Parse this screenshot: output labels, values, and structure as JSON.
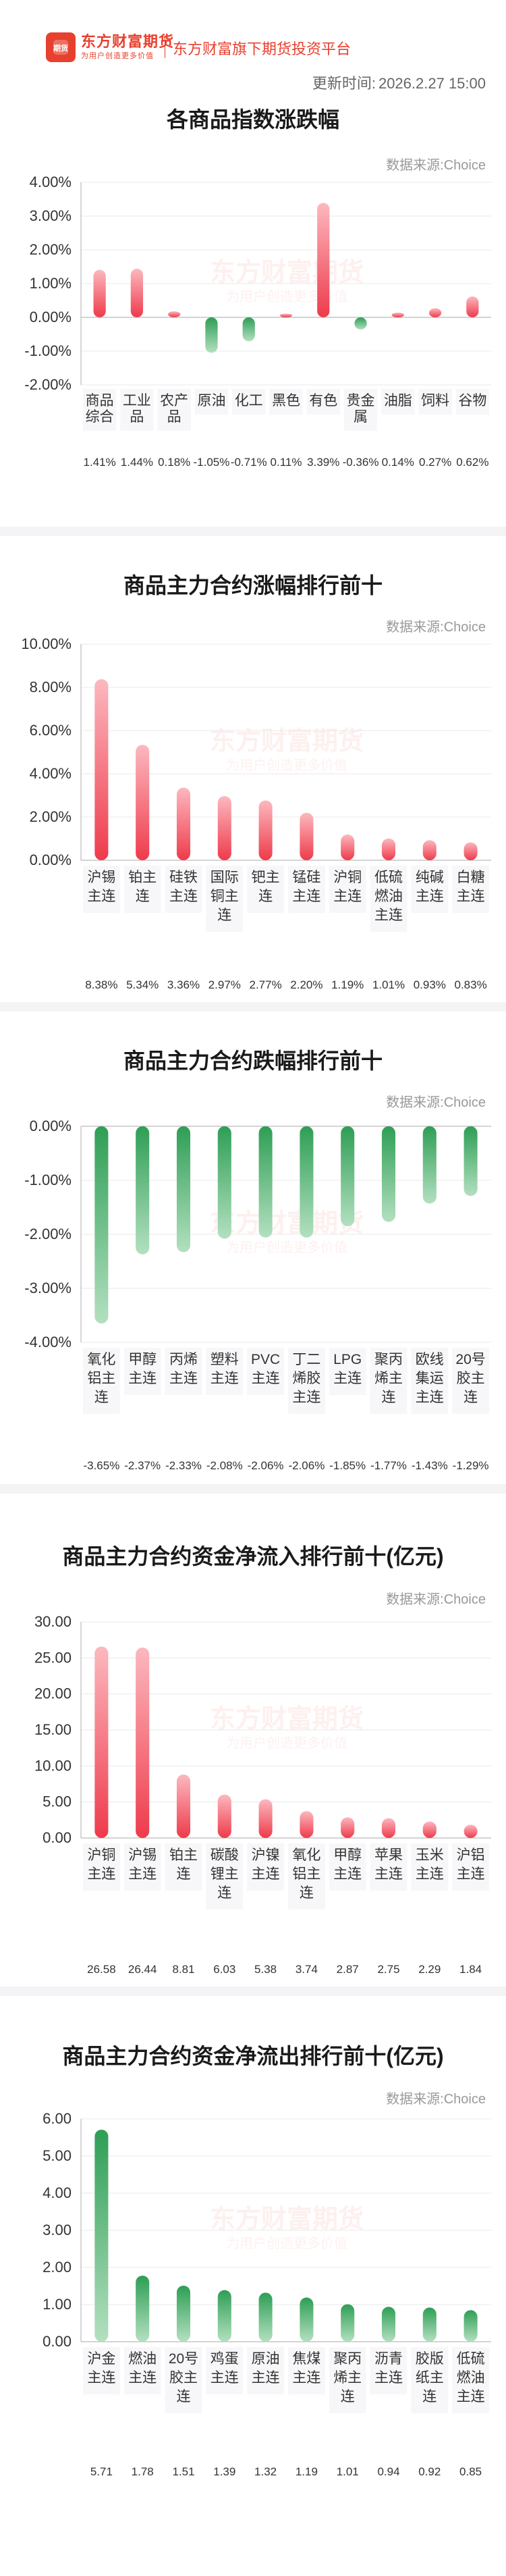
{
  "header": {
    "brand": "东方财富期货",
    "brand_slogan": "为用户创造更多价值",
    "logo_mark": "期货",
    "platform": "东方财富旗下期货投资平台",
    "update_label": "更新时间:",
    "update_time": "2026.2.27 15:00"
  },
  "watermark": {
    "brand": "东方财富期货",
    "slogan": "为用户创造更多价值"
  },
  "colors": {
    "up": "#ee3b4b",
    "up_light": "#fcb8bf",
    "down": "#2e9e55",
    "down_light": "#b3e0c0",
    "axis_text": "#333333",
    "grid": "#e9e9e9"
  },
  "chart_data": [
    {
      "id": "index",
      "type": "bar",
      "title": "各商品指数涨跌幅",
      "source": "数据来源:Choice",
      "categories": [
        [
          "商品",
          "综合"
        ],
        [
          "工业",
          "品"
        ],
        [
          "农产",
          "品"
        ],
        [
          "原油"
        ],
        [
          "化工"
        ],
        [
          "黑色"
        ],
        [
          "有色"
        ],
        [
          "贵金",
          "属"
        ],
        [
          "油脂"
        ],
        [
          "饲料"
        ],
        [
          "谷物"
        ]
      ],
      "values": [
        1.41,
        1.44,
        0.18,
        -1.05,
        -0.71,
        0.11,
        3.39,
        -0.36,
        0.14,
        0.27,
        0.62
      ],
      "value_labels": [
        "1.41%",
        "1.44%",
        "0.18%",
        "-1.05%",
        "-0.71%",
        "0.11%",
        "3.39%",
        "-0.36%",
        "0.14%",
        "0.27%",
        "0.62%"
      ],
      "ylim": [
        -2,
        4
      ],
      "yticks": [
        -2,
        -1,
        0,
        1,
        2,
        3,
        4
      ],
      "ytick_labels": [
        "-2.00%",
        "-1.00%",
        "0.00%",
        "1.00%",
        "2.00%",
        "3.00%",
        "4.00%"
      ],
      "grid": true
    },
    {
      "id": "gainers",
      "type": "bar",
      "title": "商品主力合约涨幅排行前十",
      "source": "数据来源:Choice",
      "categories": [
        [
          "沪锡",
          "主连"
        ],
        [
          "铂主",
          "连"
        ],
        [
          "硅铁",
          "主连"
        ],
        [
          "国际",
          "铜主",
          "连"
        ],
        [
          "钯主",
          "连"
        ],
        [
          "锰硅",
          "主连"
        ],
        [
          "沪铜",
          "主连"
        ],
        [
          "低硫",
          "燃油",
          "主连"
        ],
        [
          "纯碱",
          "主连"
        ],
        [
          "白糖",
          "主连"
        ]
      ],
      "values": [
        8.38,
        5.34,
        3.36,
        2.97,
        2.77,
        2.2,
        1.19,
        1.01,
        0.93,
        0.83
      ],
      "value_labels": [
        "8.38%",
        "5.34%",
        "3.36%",
        "2.97%",
        "2.77%",
        "2.20%",
        "1.19%",
        "1.01%",
        "0.93%",
        "0.83%"
      ],
      "ylim": [
        0,
        10
      ],
      "yticks": [
        0,
        2,
        4,
        6,
        8,
        10
      ],
      "ytick_labels": [
        "0.00%",
        "2.00%",
        "4.00%",
        "6.00%",
        "8.00%",
        "10.00%"
      ],
      "grid": true
    },
    {
      "id": "losers",
      "type": "bar",
      "title": "商品主力合约跌幅排行前十",
      "source": "数据来源:Choice",
      "categories": [
        [
          "氧化",
          "铝主",
          "连"
        ],
        [
          "甲醇",
          "主连"
        ],
        [
          "丙烯",
          "主连"
        ],
        [
          "塑料",
          "主连"
        ],
        [
          "PVC",
          "主连"
        ],
        [
          "丁二",
          "烯胶",
          "主连"
        ],
        [
          "LPG",
          "主连"
        ],
        [
          "聚丙",
          "烯主",
          "连"
        ],
        [
          "欧线",
          "集运",
          "主连"
        ],
        [
          "20号",
          "胶主",
          "连"
        ]
      ],
      "values": [
        -3.65,
        -2.37,
        -2.33,
        -2.08,
        -2.06,
        -2.06,
        -1.85,
        -1.77,
        -1.43,
        -1.29
      ],
      "value_labels": [
        "-3.65%",
        "-2.37%",
        "-2.33%",
        "-2.08%",
        "-2.06%",
        "-2.06%",
        "-1.85%",
        "-1.77%",
        "-1.43%",
        "-1.29%"
      ],
      "ylim": [
        -4,
        0
      ],
      "yticks": [
        -4,
        -3,
        -2,
        -1,
        0
      ],
      "ytick_labels": [
        "-4.00%",
        "-3.00%",
        "-2.00%",
        "-1.00%",
        "0.00%"
      ],
      "grid": true
    },
    {
      "id": "inflow",
      "type": "bar",
      "title": "商品主力合约资金净流入排行前十(亿元)",
      "source": "数据来源:Choice",
      "categories": [
        [
          "沪铜",
          "主连"
        ],
        [
          "沪锡",
          "主连"
        ],
        [
          "铂主",
          "连"
        ],
        [
          "碳酸",
          "锂主",
          "连"
        ],
        [
          "沪镍",
          "主连"
        ],
        [
          "氧化",
          "铝主",
          "连"
        ],
        [
          "甲醇",
          "主连"
        ],
        [
          "苹果",
          "主连"
        ],
        [
          "玉米",
          "主连"
        ],
        [
          "沪铝",
          "主连"
        ]
      ],
      "values": [
        26.58,
        26.44,
        8.81,
        6.03,
        5.38,
        3.74,
        2.87,
        2.75,
        2.29,
        1.84
      ],
      "value_labels": [
        "26.58",
        "26.44",
        "8.81",
        "6.03",
        "5.38",
        "3.74",
        "2.87",
        "2.75",
        "2.29",
        "1.84"
      ],
      "ylim": [
        0,
        30
      ],
      "yticks": [
        0,
        5,
        10,
        15,
        20,
        25,
        30
      ],
      "ytick_labels": [
        "0.00",
        "5.00",
        "10.00",
        "15.00",
        "20.00",
        "25.00",
        "30.00"
      ],
      "grid": true
    },
    {
      "id": "outflow",
      "type": "bar",
      "title": "商品主力合约资金净流出排行前十(亿元)",
      "source": "数据来源:Choice",
      "categories": [
        [
          "沪金",
          "主连"
        ],
        [
          "燃油",
          "主连"
        ],
        [
          "20号",
          "胶主",
          "连"
        ],
        [
          "鸡蛋",
          "主连"
        ],
        [
          "原油",
          "主连"
        ],
        [
          "焦煤",
          "主连"
        ],
        [
          "聚丙",
          "烯主",
          "连"
        ],
        [
          "沥青",
          "主连"
        ],
        [
          "胶版",
          "纸主",
          "连"
        ],
        [
          "低硫",
          "燃油",
          "主连"
        ]
      ],
      "values": [
        5.71,
        1.78,
        1.51,
        1.39,
        1.32,
        1.19,
        1.01,
        0.94,
        0.92,
        0.85
      ],
      "value_labels": [
        "5.71",
        "1.78",
        "1.51",
        "1.39",
        "1.32",
        "1.19",
        "1.01",
        "0.94",
        "0.92",
        "0.85"
      ],
      "ylim": [
        0,
        6
      ],
      "yticks": [
        0,
        1,
        2,
        3,
        4,
        5,
        6
      ],
      "ytick_labels": [
        "0.00",
        "1.00",
        "2.00",
        "3.00",
        "4.00",
        "5.00",
        "6.00"
      ],
      "grid": true,
      "positive_color": "down"
    }
  ]
}
